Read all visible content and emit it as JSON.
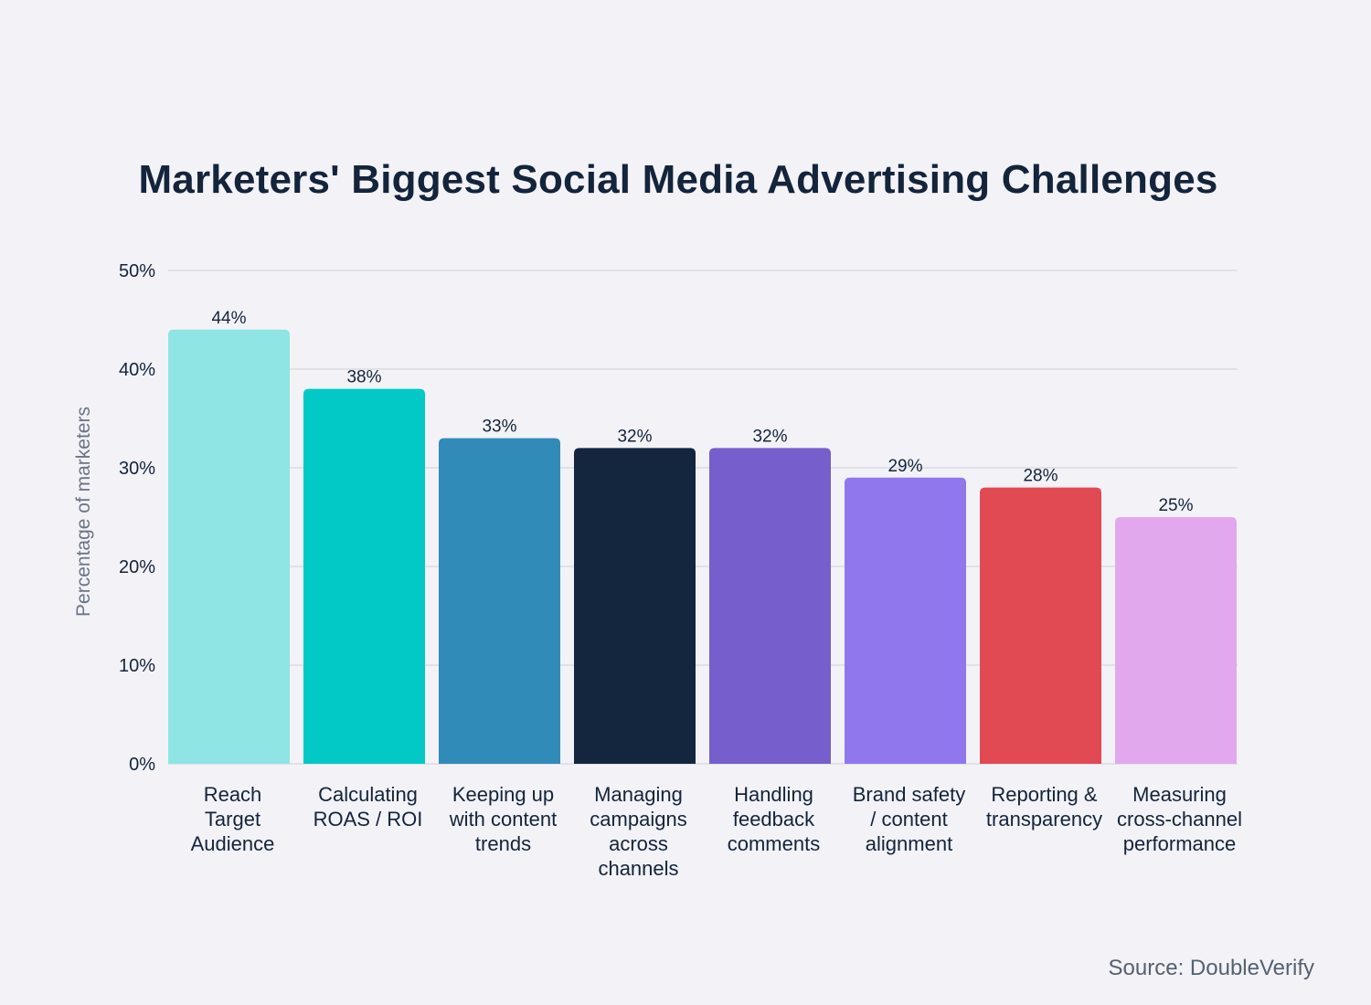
{
  "chart_data": {
    "type": "bar",
    "title": "Marketers' Biggest Social Media Advertising Challenges",
    "ylabel": "Percentage of marketers",
    "xlabel": "",
    "ylim": [
      0,
      50
    ],
    "yticks": [
      0,
      10,
      20,
      30,
      40,
      50
    ],
    "ytick_labels": [
      "0%",
      "10%",
      "20%",
      "30%",
      "40%",
      "50%"
    ],
    "grid": true,
    "legend": "none",
    "categories": [
      [
        "Reach",
        "Target",
        "Audience"
      ],
      [
        "Calculating",
        "ROAS / ROI"
      ],
      [
        "Keeping up",
        "with content",
        "trends"
      ],
      [
        "Managing",
        "campaigns",
        "across",
        "channels"
      ],
      [
        "Handling",
        "feedback",
        "comments"
      ],
      [
        "Brand safety",
        "/ content",
        "alignment"
      ],
      [
        "Reporting &",
        "transparency"
      ],
      [
        "Measuring",
        "cross-channel",
        "performance"
      ]
    ],
    "values": [
      44,
      38,
      33,
      32,
      32,
      29,
      28,
      25
    ],
    "value_labels": [
      "44%",
      "38%",
      "33%",
      "32%",
      "32%",
      "29%",
      "28%",
      "25%"
    ],
    "colors": [
      "#8ee5e3",
      "#03c9c6",
      "#308bb9",
      "#13263d",
      "#765ecd",
      "#9177ee",
      "#e24a53",
      "#e2a8ee"
    ]
  },
  "source": "Source: DoubleVerify",
  "colors": {
    "background": "#f3f2f7",
    "gridline": "#dddbe3",
    "text": "#13243b"
  }
}
